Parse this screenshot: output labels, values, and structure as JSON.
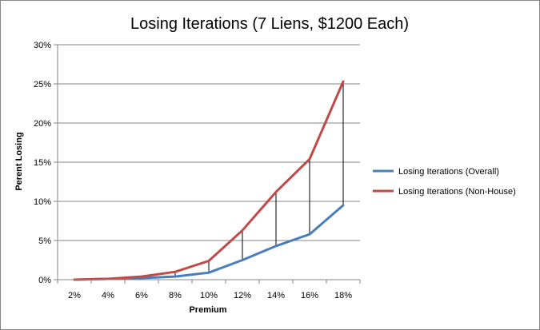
{
  "chart_data": {
    "type": "line",
    "title": "Losing Iterations (7 Liens, $1200 Each)",
    "xlabel": "Premium",
    "ylabel": "Perent Losing",
    "categories": [
      "2%",
      "4%",
      "6%",
      "8%",
      "10%",
      "12%",
      "14%",
      "16%",
      "18%"
    ],
    "y_ticks": [
      "0%",
      "5%",
      "10%",
      "15%",
      "20%",
      "25%",
      "30%"
    ],
    "ylim": [
      0,
      30
    ],
    "grid": true,
    "legend_position": "right",
    "high_low_lines": true,
    "series": [
      {
        "name": "Losing Iterations (Overall)",
        "color": "#4a7ebb",
        "values": [
          0.0,
          0.1,
          0.2,
          0.4,
          0.9,
          2.5,
          4.3,
          5.8,
          9.5
        ]
      },
      {
        "name": "Losing Iterations (Non-House)",
        "color": "#be4b48",
        "values": [
          0.0,
          0.1,
          0.4,
          1.0,
          2.4,
          6.3,
          11.2,
          15.4,
          25.3
        ]
      }
    ]
  }
}
